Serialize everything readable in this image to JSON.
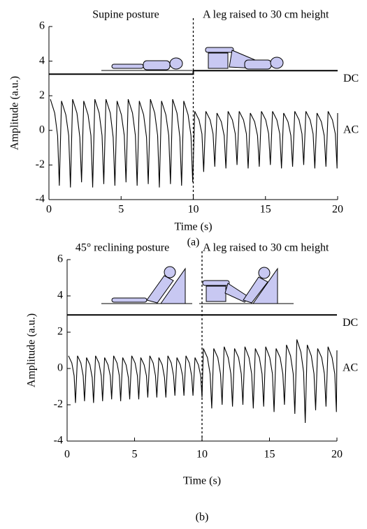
{
  "chart_data": [
    {
      "type": "line",
      "panel_label": "(a)",
      "x_label": "Time (s)",
      "y_label": "Amplitude (a.u.)",
      "annotations": [
        "Supine posture",
        "A leg raised to 30 cm height",
        "DC",
        "AC"
      ],
      "divider_x": 10,
      "xlim": [
        0,
        20
      ],
      "xticks": [
        0,
        5,
        10,
        15,
        20
      ],
      "ylim": [
        -4,
        6
      ],
      "yticks": [
        -4,
        -2,
        0,
        2,
        4,
        6
      ],
      "series": [
        {
          "name": "DC",
          "color": "#000000",
          "x": [
            0,
            10,
            10,
            20
          ],
          "values": [
            3.25,
            3.25,
            3.45,
            3.45
          ]
        },
        {
          "name": "AC",
          "color": "#000000",
          "x": [
            0.1,
            0.4,
            0.6,
            0.72,
            0.87,
            1.17,
            1.37,
            1.49,
            1.64,
            1.94,
            2.14,
            2.26,
            2.41,
            2.71,
            2.91,
            3.03,
            3.18,
            3.48,
            3.68,
            3.8,
            3.95,
            4.25,
            4.45,
            4.57,
            4.72,
            5.02,
            5.22,
            5.34,
            5.49,
            5.79,
            5.99,
            6.11,
            6.26,
            6.56,
            6.76,
            6.88,
            7.03,
            7.33,
            7.53,
            7.65,
            7.8,
            8.1,
            8.3,
            8.42,
            8.57,
            8.87,
            9.07,
            9.19,
            9.34,
            9.64,
            9.84,
            9.96,
            10.1,
            10.4,
            10.6,
            10.72,
            10.87,
            11.17,
            11.37,
            11.49,
            11.64,
            11.94,
            12.14,
            12.26,
            12.41,
            12.71,
            12.91,
            13.03,
            13.18,
            13.48,
            13.68,
            13.8,
            13.95,
            14.25,
            14.45,
            14.57,
            14.72,
            15.02,
            15.22,
            15.34,
            15.49,
            15.79,
            15.99,
            16.11,
            16.26,
            16.56,
            16.76,
            16.88,
            17.03,
            17.33,
            17.53,
            17.65,
            17.8,
            18.1,
            18.3,
            18.42,
            18.57,
            18.87,
            19.07,
            19.19,
            19.34,
            19.64,
            19.84,
            19.96,
            20.0
          ],
          "values": [
            1.8,
            1.0,
            -0.3,
            -3.2,
            1.7,
            0.9,
            -0.3,
            -3.3,
            1.8,
            1.0,
            -0.4,
            -3.0,
            1.7,
            0.9,
            -0.3,
            -3.3,
            1.8,
            1.0,
            -0.3,
            -3.1,
            1.8,
            1.0,
            -0.4,
            -3.2,
            1.7,
            0.9,
            -0.3,
            -3.0,
            1.8,
            1.0,
            -0.3,
            -3.2,
            1.7,
            0.9,
            -0.4,
            -3.1,
            1.8,
            1.0,
            -0.3,
            -3.3,
            1.7,
            0.9,
            -0.3,
            -3.1,
            1.8,
            1.0,
            -0.4,
            -3.2,
            1.7,
            0.9,
            -0.3,
            -3.0,
            1.1,
            0.6,
            -0.2,
            -2.4,
            1.1,
            0.6,
            -0.2,
            -2.1,
            1.0,
            0.5,
            -0.3,
            -2.2,
            1.1,
            0.6,
            -0.2,
            -2.0,
            1.1,
            0.6,
            -0.2,
            -2.2,
            1.0,
            0.5,
            -0.3,
            -2.1,
            1.1,
            0.6,
            -0.2,
            -2.0,
            1.1,
            0.6,
            -0.2,
            -2.2,
            1.0,
            0.5,
            -0.3,
            -2.1,
            1.1,
            0.6,
            -0.2,
            -2.0,
            1.1,
            0.6,
            -0.2,
            -2.2,
            1.0,
            0.5,
            -0.3,
            -2.1,
            1.1,
            0.6,
            -0.2,
            -2.2,
            1.0
          ]
        }
      ]
    },
    {
      "type": "line",
      "panel_label": "(b)",
      "x_label": "Time (s)",
      "y_label": "Amplitude (a.u.)",
      "annotations": [
        "45° reclining posture",
        "A leg raised to 30 cm height",
        "DC",
        "AC"
      ],
      "divider_x": 10,
      "xlim": [
        0,
        20
      ],
      "xticks": [
        0,
        5,
        10,
        15,
        20
      ],
      "ylim": [
        -4,
        6
      ],
      "yticks": [
        -4,
        -2,
        0,
        2,
        4,
        6
      ],
      "series": [
        {
          "name": "DC",
          "color": "#000000",
          "x": [
            0,
            20
          ],
          "values": [
            2.95,
            2.95
          ]
        },
        {
          "name": "AC",
          "color": "#000000",
          "x": [
            0.1,
            0.35,
            0.52,
            0.62,
            0.77,
            1.02,
            1.19,
            1.29,
            1.44,
            1.69,
            1.86,
            1.96,
            2.11,
            2.36,
            2.53,
            2.63,
            2.78,
            3.03,
            3.2,
            3.3,
            3.45,
            3.7,
            3.87,
            3.97,
            4.12,
            4.37,
            4.54,
            4.64,
            4.79,
            5.04,
            5.21,
            5.31,
            5.46,
            5.71,
            5.88,
            5.98,
            6.13,
            6.38,
            6.55,
            6.65,
            6.8,
            7.05,
            7.22,
            7.32,
            7.47,
            7.72,
            7.89,
            7.99,
            8.14,
            8.39,
            8.56,
            8.66,
            8.81,
            9.06,
            9.23,
            9.33,
            9.48,
            9.73,
            9.9,
            10.0,
            10.1,
            10.4,
            10.6,
            10.72,
            10.87,
            11.17,
            11.37,
            11.49,
            11.64,
            11.94,
            12.14,
            12.26,
            12.41,
            12.71,
            12.91,
            13.03,
            13.18,
            13.48,
            13.68,
            13.8,
            13.95,
            14.25,
            14.45,
            14.57,
            14.72,
            15.02,
            15.22,
            15.34,
            15.49,
            15.79,
            15.99,
            16.11,
            16.26,
            16.56,
            16.76,
            16.88,
            17.03,
            17.33,
            17.53,
            17.65,
            17.8,
            18.1,
            18.3,
            18.42,
            18.57,
            18.87,
            19.07,
            19.19,
            19.34,
            19.64,
            19.84,
            19.96,
            20.0
          ],
          "values": [
            0.7,
            0.3,
            -0.4,
            -1.9,
            0.7,
            0.3,
            -0.4,
            -1.8,
            0.6,
            0.2,
            -0.5,
            -1.9,
            0.7,
            0.3,
            -0.4,
            -1.8,
            0.6,
            0.2,
            -0.4,
            -1.7,
            0.7,
            0.3,
            -0.4,
            -1.8,
            0.6,
            0.2,
            -0.5,
            -1.7,
            0.7,
            0.3,
            -0.4,
            -1.7,
            0.6,
            0.2,
            -0.4,
            -1.6,
            0.7,
            0.3,
            -0.4,
            -1.6,
            0.6,
            0.2,
            -0.5,
            -1.6,
            0.7,
            0.3,
            -0.4,
            -1.5,
            0.6,
            0.2,
            -0.4,
            -1.5,
            0.7,
            0.3,
            -0.4,
            -1.5,
            0.6,
            0.2,
            -0.4,
            -1.6,
            1.1,
            0.6,
            -0.3,
            -2.2,
            1.1,
            0.6,
            -0.3,
            -2.0,
            1.2,
            0.6,
            -0.3,
            -2.1,
            1.1,
            0.6,
            -0.3,
            -2.0,
            1.2,
            0.6,
            -0.3,
            -2.2,
            1.1,
            0.6,
            -0.3,
            -2.1,
            1.2,
            0.6,
            -0.3,
            -2.4,
            1.1,
            0.6,
            -0.3,
            -2.0,
            1.3,
            0.7,
            -0.3,
            -2.5,
            1.6,
            0.9,
            -0.2,
            -3.0,
            1.3,
            0.7,
            -0.3,
            -2.3,
            1.1,
            0.6,
            -0.3,
            -2.1,
            1.2,
            0.6,
            -0.3,
            -2.4,
            1.0
          ]
        }
      ]
    }
  ]
}
